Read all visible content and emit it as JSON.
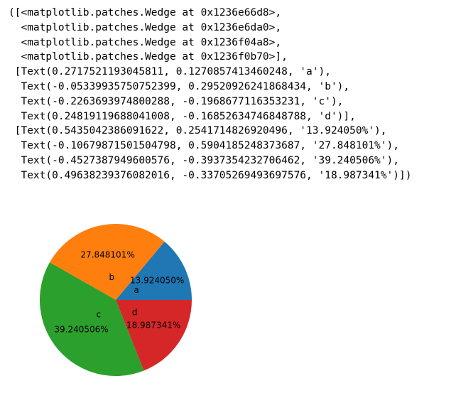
{
  "output_lines": [
    "([<matplotlib.patches.Wedge at 0x1236e66d8>,",
    "  <matplotlib.patches.Wedge at 0x1236e6da0>,",
    "  <matplotlib.patches.Wedge at 0x1236f04a8>,",
    "  <matplotlib.patches.Wedge at 0x1236f0b70>],",
    " [Text(0.2717521193045811, 0.1270857413460248, 'a'),",
    "  Text(-0.05339935750752399, 0.29520926241868434, 'b'),",
    "  Text(-0.2263693974800288, -0.1968677116353231, 'c'),",
    "  Text(0.24819119688041008, -0.16852634746848788, 'd')],",
    " [Text(0.5435042386091622, 0.2541714826920496, '13.924050%'),",
    "  Text(-0.10679871501504798, 0.5904185248373687, '27.848101%'),",
    "  Text(-0.4527387949600576, -0.3937354232706462, '39.240506%'),",
    "  Text(0.49638239376082016, -0.33705269493697576, '18.987341%')])"
  ],
  "chart_data": {
    "type": "pie",
    "categories": [
      "a",
      "b",
      "c",
      "d"
    ],
    "values": [
      13.92405,
      27.848101,
      39.240506,
      18.987341
    ],
    "value_labels": [
      "13.924050%",
      "27.848101%",
      "39.240506%",
      "18.987341%"
    ],
    "colors": [
      "#1f77b4",
      "#ff7f0e",
      "#2ca02c",
      "#d62728"
    ]
  }
}
